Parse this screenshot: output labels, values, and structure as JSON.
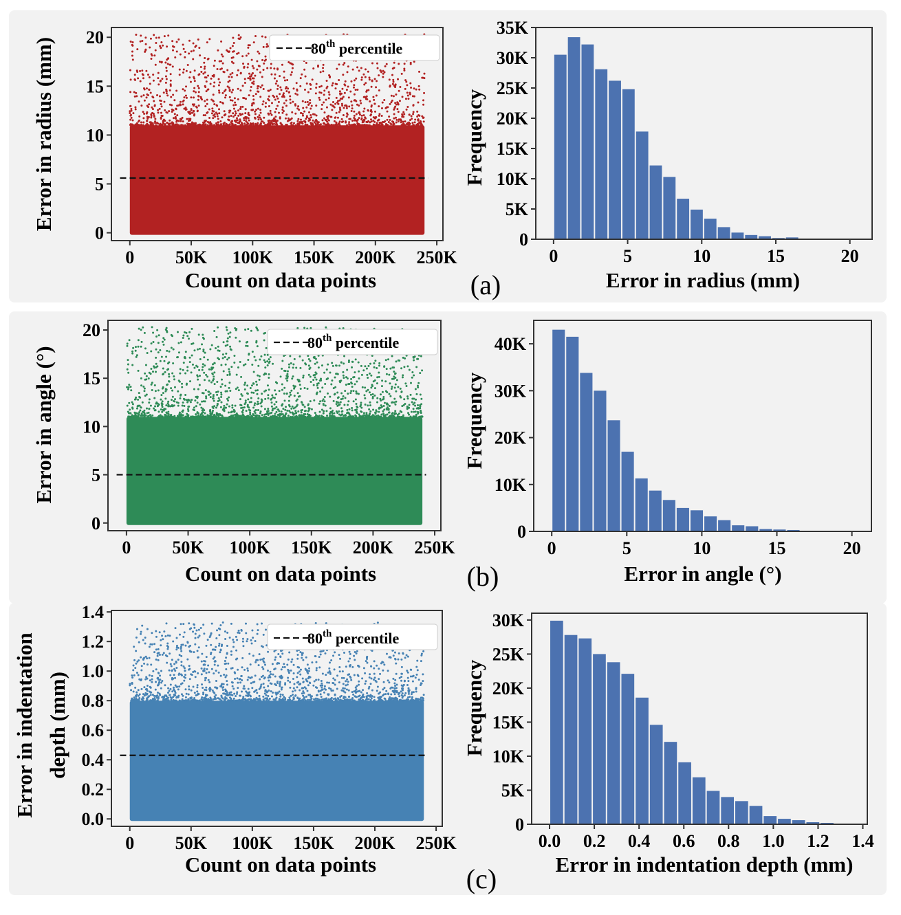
{
  "panels": [
    {
      "label": "(a)",
      "scatter": {
        "type": "scatter",
        "xlabel": "Count on data points",
        "ylabel": "Error in radius (mm)",
        "xlim": [
          -15000,
          255000
        ],
        "ylim": [
          -0.8,
          21.0
        ],
        "xticks": [
          0,
          50000,
          100000,
          150000,
          200000,
          250000
        ],
        "xtick_labels": [
          "0",
          "50K",
          "100K",
          "150K",
          "200K",
          "250K"
        ],
        "yticks": [
          0,
          5,
          10,
          15,
          20
        ],
        "ytick_labels": [
          "0",
          "5",
          "10",
          "15",
          "20"
        ],
        "n_points": 240000,
        "point_color": "#b22222",
        "dense_max": 11,
        "max_value": 20.3,
        "percentile_80": 5.6,
        "legend": {
          "label": "80",
          "superscript": "th",
          "suffix": " percentile",
          "placement": "top-right"
        }
      },
      "histogram": {
        "type": "bar",
        "xlabel": "Error in radius (mm)",
        "ylabel": "Frequency",
        "xlim": [
          -1.2,
          21.5
        ],
        "ylim": [
          0,
          35000
        ],
        "xticks": [
          0,
          5,
          10,
          15,
          20
        ],
        "xtick_labels": [
          "0",
          "5",
          "10",
          "15",
          "20"
        ],
        "yticks": [
          0,
          5000,
          10000,
          15000,
          20000,
          25000,
          30000,
          35000
        ],
        "ytick_labels": [
          "0",
          "5K",
          "10K",
          "15K",
          "20K",
          "25K",
          "30K",
          "35K"
        ],
        "bin_start": 0.0,
        "bin_width": 0.92,
        "bar_color": "#4c72b0",
        "values": [
          30500,
          33400,
          32200,
          28100,
          26200,
          24800,
          17800,
          12200,
          10300,
          6700,
          4900,
          3400,
          2000,
          1100,
          700,
          500,
          200,
          300,
          0,
          0,
          0,
          0
        ]
      }
    },
    {
      "label": "(b)",
      "scatter": {
        "type": "scatter",
        "xlabel": "Count on data points",
        "ylabel": "Error in angle (°)",
        "xlim": [
          -15000,
          255000
        ],
        "ylim": [
          -0.8,
          21.0
        ],
        "xticks": [
          0,
          50000,
          100000,
          150000,
          200000,
          250000
        ],
        "xtick_labels": [
          "0",
          "50K",
          "100K",
          "150K",
          "200K",
          "250K"
        ],
        "yticks": [
          0,
          5,
          10,
          15,
          20
        ],
        "ytick_labels": [
          "0",
          "5",
          "10",
          "15",
          "20"
        ],
        "n_points": 240000,
        "point_color": "#2e8b57",
        "dense_max": 11,
        "max_value": 20.3,
        "percentile_80": 5.0,
        "legend": {
          "label": "80",
          "superscript": "th",
          "suffix": " percentile",
          "placement": "top-right"
        }
      },
      "histogram": {
        "type": "bar",
        "xlabel": "Error in angle (°)",
        "ylabel": "Frequency",
        "xlim": [
          -1.2,
          21.3
        ],
        "ylim": [
          0,
          45000
        ],
        "xticks": [
          0,
          5,
          10,
          15,
          20
        ],
        "xtick_labels": [
          "0",
          "5",
          "10",
          "15",
          "20"
        ],
        "yticks": [
          0,
          10000,
          20000,
          30000,
          40000
        ],
        "ytick_labels": [
          "0",
          "10K",
          "20K",
          "30K",
          "40K"
        ],
        "bin_start": 0.0,
        "bin_width": 0.92,
        "bar_color": "#4c72b0",
        "values": [
          43000,
          41500,
          33800,
          30000,
          23700,
          17000,
          11300,
          8700,
          6700,
          5000,
          4500,
          3200,
          2400,
          1300,
          1100,
          500,
          400,
          300,
          0,
          0,
          0,
          0
        ]
      }
    },
    {
      "label": "(c)",
      "scatter": {
        "type": "scatter",
        "xlabel": "Count on data points",
        "ylabel": "Error in indentation depth (mm)",
        "xlim": [
          -15000,
          255000
        ],
        "ylim": [
          -0.05,
          1.41
        ],
        "xticks": [
          0,
          50000,
          100000,
          150000,
          200000,
          250000
        ],
        "xtick_labels": [
          "0",
          "50K",
          "100K",
          "150K",
          "200K",
          "250K"
        ],
        "yticks": [
          0.0,
          0.2,
          0.4,
          0.6,
          0.8,
          1.0,
          1.2,
          1.4
        ],
        "ytick_labels": [
          "0.0",
          "0.2",
          "0.4",
          "0.6",
          "0.8",
          "1.0",
          "1.2",
          "1.4"
        ],
        "n_points": 240000,
        "point_color": "#4682b4",
        "dense_max": 0.8,
        "max_value": 1.33,
        "percentile_80": 0.43,
        "legend": {
          "label": "80",
          "superscript": "th",
          "suffix": " percentile",
          "placement": "top-right"
        }
      },
      "histogram": {
        "type": "bar",
        "xlabel": "Error in indentation depth (mm)",
        "ylabel": "Frequency",
        "xlim": [
          -0.08,
          1.42
        ],
        "ylim": [
          0,
          31000
        ],
        "xticks": [
          0.0,
          0.2,
          0.4,
          0.6,
          0.8,
          1.0,
          1.2,
          1.4
        ],
        "xtick_labels": [
          "0.0",
          "0.2",
          "0.4",
          "0.6",
          "0.8",
          "1.0",
          "1.2",
          "1.4"
        ],
        "yticks": [
          0,
          5000,
          10000,
          15000,
          20000,
          25000,
          30000
        ],
        "ytick_labels": [
          "0",
          "5K",
          "10K",
          "15K",
          "20K",
          "25K",
          "30K"
        ],
        "bin_start": 0.0,
        "bin_width": 0.0636,
        "bar_color": "#4c72b0",
        "values": [
          29900,
          27800,
          27300,
          25000,
          23800,
          22100,
          18600,
          14600,
          12100,
          9100,
          6900,
          4900,
          4000,
          3400,
          2700,
          1200,
          800,
          600,
          300,
          200,
          0,
          0
        ]
      }
    }
  ]
}
